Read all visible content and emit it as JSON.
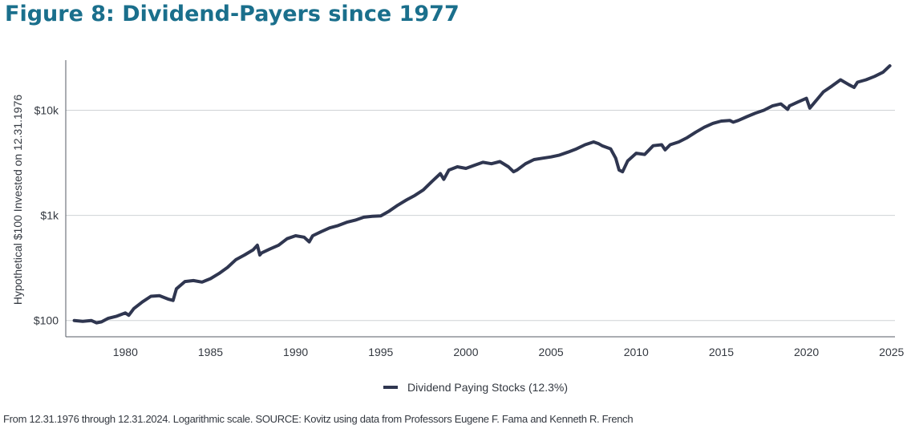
{
  "title": "Figure 8: Dividend-Payers since 1977",
  "footer": "From 12.31.1976 through 12.31.2024. Logarithmic scale. SOURCE: Kovitz using data from Professors Eugene F. Fama and Kenneth R. French",
  "chart_data": {
    "type": "line",
    "title": "Figure 8: Dividend-Payers since 1977",
    "xlabel": "",
    "ylabel": "Hypothetical $100 Invested on 12.31.1976",
    "yscale": "log",
    "ylim": [
      70,
      30000
    ],
    "xlim": [
      1976.5,
      2025.2
    ],
    "x_ticks": [
      1980,
      1985,
      1990,
      1995,
      2000,
      2005,
      2010,
      2015,
      2020,
      2025
    ],
    "x_tick_labels": [
      "1980",
      "1985",
      "1990",
      "1995",
      "2000",
      "2005",
      "2010",
      "2015",
      "2020",
      "2025"
    ],
    "y_ticks": [
      100,
      1000,
      10000
    ],
    "y_tick_labels": [
      "$100",
      "$1k",
      "$10k"
    ],
    "grid": "horizontal",
    "legend": "bottom-center",
    "series_color": "#2f3650",
    "series": [
      {
        "name": "Dividend Paying Stocks (12.3%)",
        "x": [
          1977.0,
          1977.5,
          1978.0,
          1978.3,
          1978.6,
          1979.0,
          1979.5,
          1980.0,
          1980.2,
          1980.5,
          1981.0,
          1981.5,
          1982.0,
          1982.5,
          1982.8,
          1983.0,
          1983.5,
          1984.0,
          1984.5,
          1985.0,
          1985.5,
          1986.0,
          1986.5,
          1987.0,
          1987.5,
          1987.75,
          1987.9,
          1988.0,
          1988.5,
          1989.0,
          1989.5,
          1990.0,
          1990.5,
          1990.8,
          1991.0,
          1991.5,
          1992.0,
          1992.5,
          1993.0,
          1993.5,
          1994.0,
          1994.5,
          1995.0,
          1995.5,
          1996.0,
          1996.5,
          1997.0,
          1997.5,
          1998.0,
          1998.5,
          1998.7,
          1999.0,
          1999.5,
          2000.0,
          2000.5,
          2001.0,
          2001.5,
          2002.0,
          2002.5,
          2002.8,
          2003.0,
          2003.5,
          2004.0,
          2004.5,
          2005.0,
          2005.5,
          2006.0,
          2006.5,
          2007.0,
          2007.5,
          2007.8,
          2008.0,
          2008.5,
          2008.8,
          2009.0,
          2009.2,
          2009.5,
          2010.0,
          2010.5,
          2011.0,
          2011.5,
          2011.7,
          2012.0,
          2012.5,
          2013.0,
          2013.5,
          2014.0,
          2014.5,
          2015.0,
          2015.5,
          2015.7,
          2016.0,
          2016.5,
          2017.0,
          2017.5,
          2018.0,
          2018.5,
          2018.9,
          2019.0,
          2019.5,
          2020.0,
          2020.2,
          2020.5,
          2021.0,
          2021.5,
          2022.0,
          2022.5,
          2022.8,
          2023.0,
          2023.5,
          2024.0,
          2024.5,
          2024.9
        ],
        "y": [
          100,
          98,
          100,
          95,
          97,
          105,
          110,
          118,
          112,
          130,
          150,
          170,
          172,
          160,
          155,
          200,
          235,
          240,
          232,
          250,
          280,
          320,
          380,
          420,
          470,
          520,
          420,
          440,
          480,
          520,
          600,
          640,
          620,
          560,
          640,
          700,
          760,
          800,
          860,
          900,
          960,
          980,
          990,
          1100,
          1250,
          1400,
          1550,
          1750,
          2100,
          2500,
          2200,
          2700,
          2900,
          2800,
          3000,
          3200,
          3100,
          3250,
          2900,
          2600,
          2700,
          3100,
          3400,
          3500,
          3600,
          3750,
          4000,
          4300,
          4700,
          5000,
          4800,
          4600,
          4300,
          3500,
          2700,
          2600,
          3300,
          3900,
          3800,
          4600,
          4700,
          4200,
          4700,
          5000,
          5500,
          6200,
          6900,
          7500,
          7900,
          8000,
          7700,
          8000,
          8700,
          9400,
          10000,
          11000,
          11500,
          10200,
          11000,
          12000,
          13000,
          10500,
          12000,
          15000,
          17000,
          19500,
          17500,
          16500,
          18500,
          19500,
          21000,
          23000,
          26500
        ]
      }
    ]
  }
}
